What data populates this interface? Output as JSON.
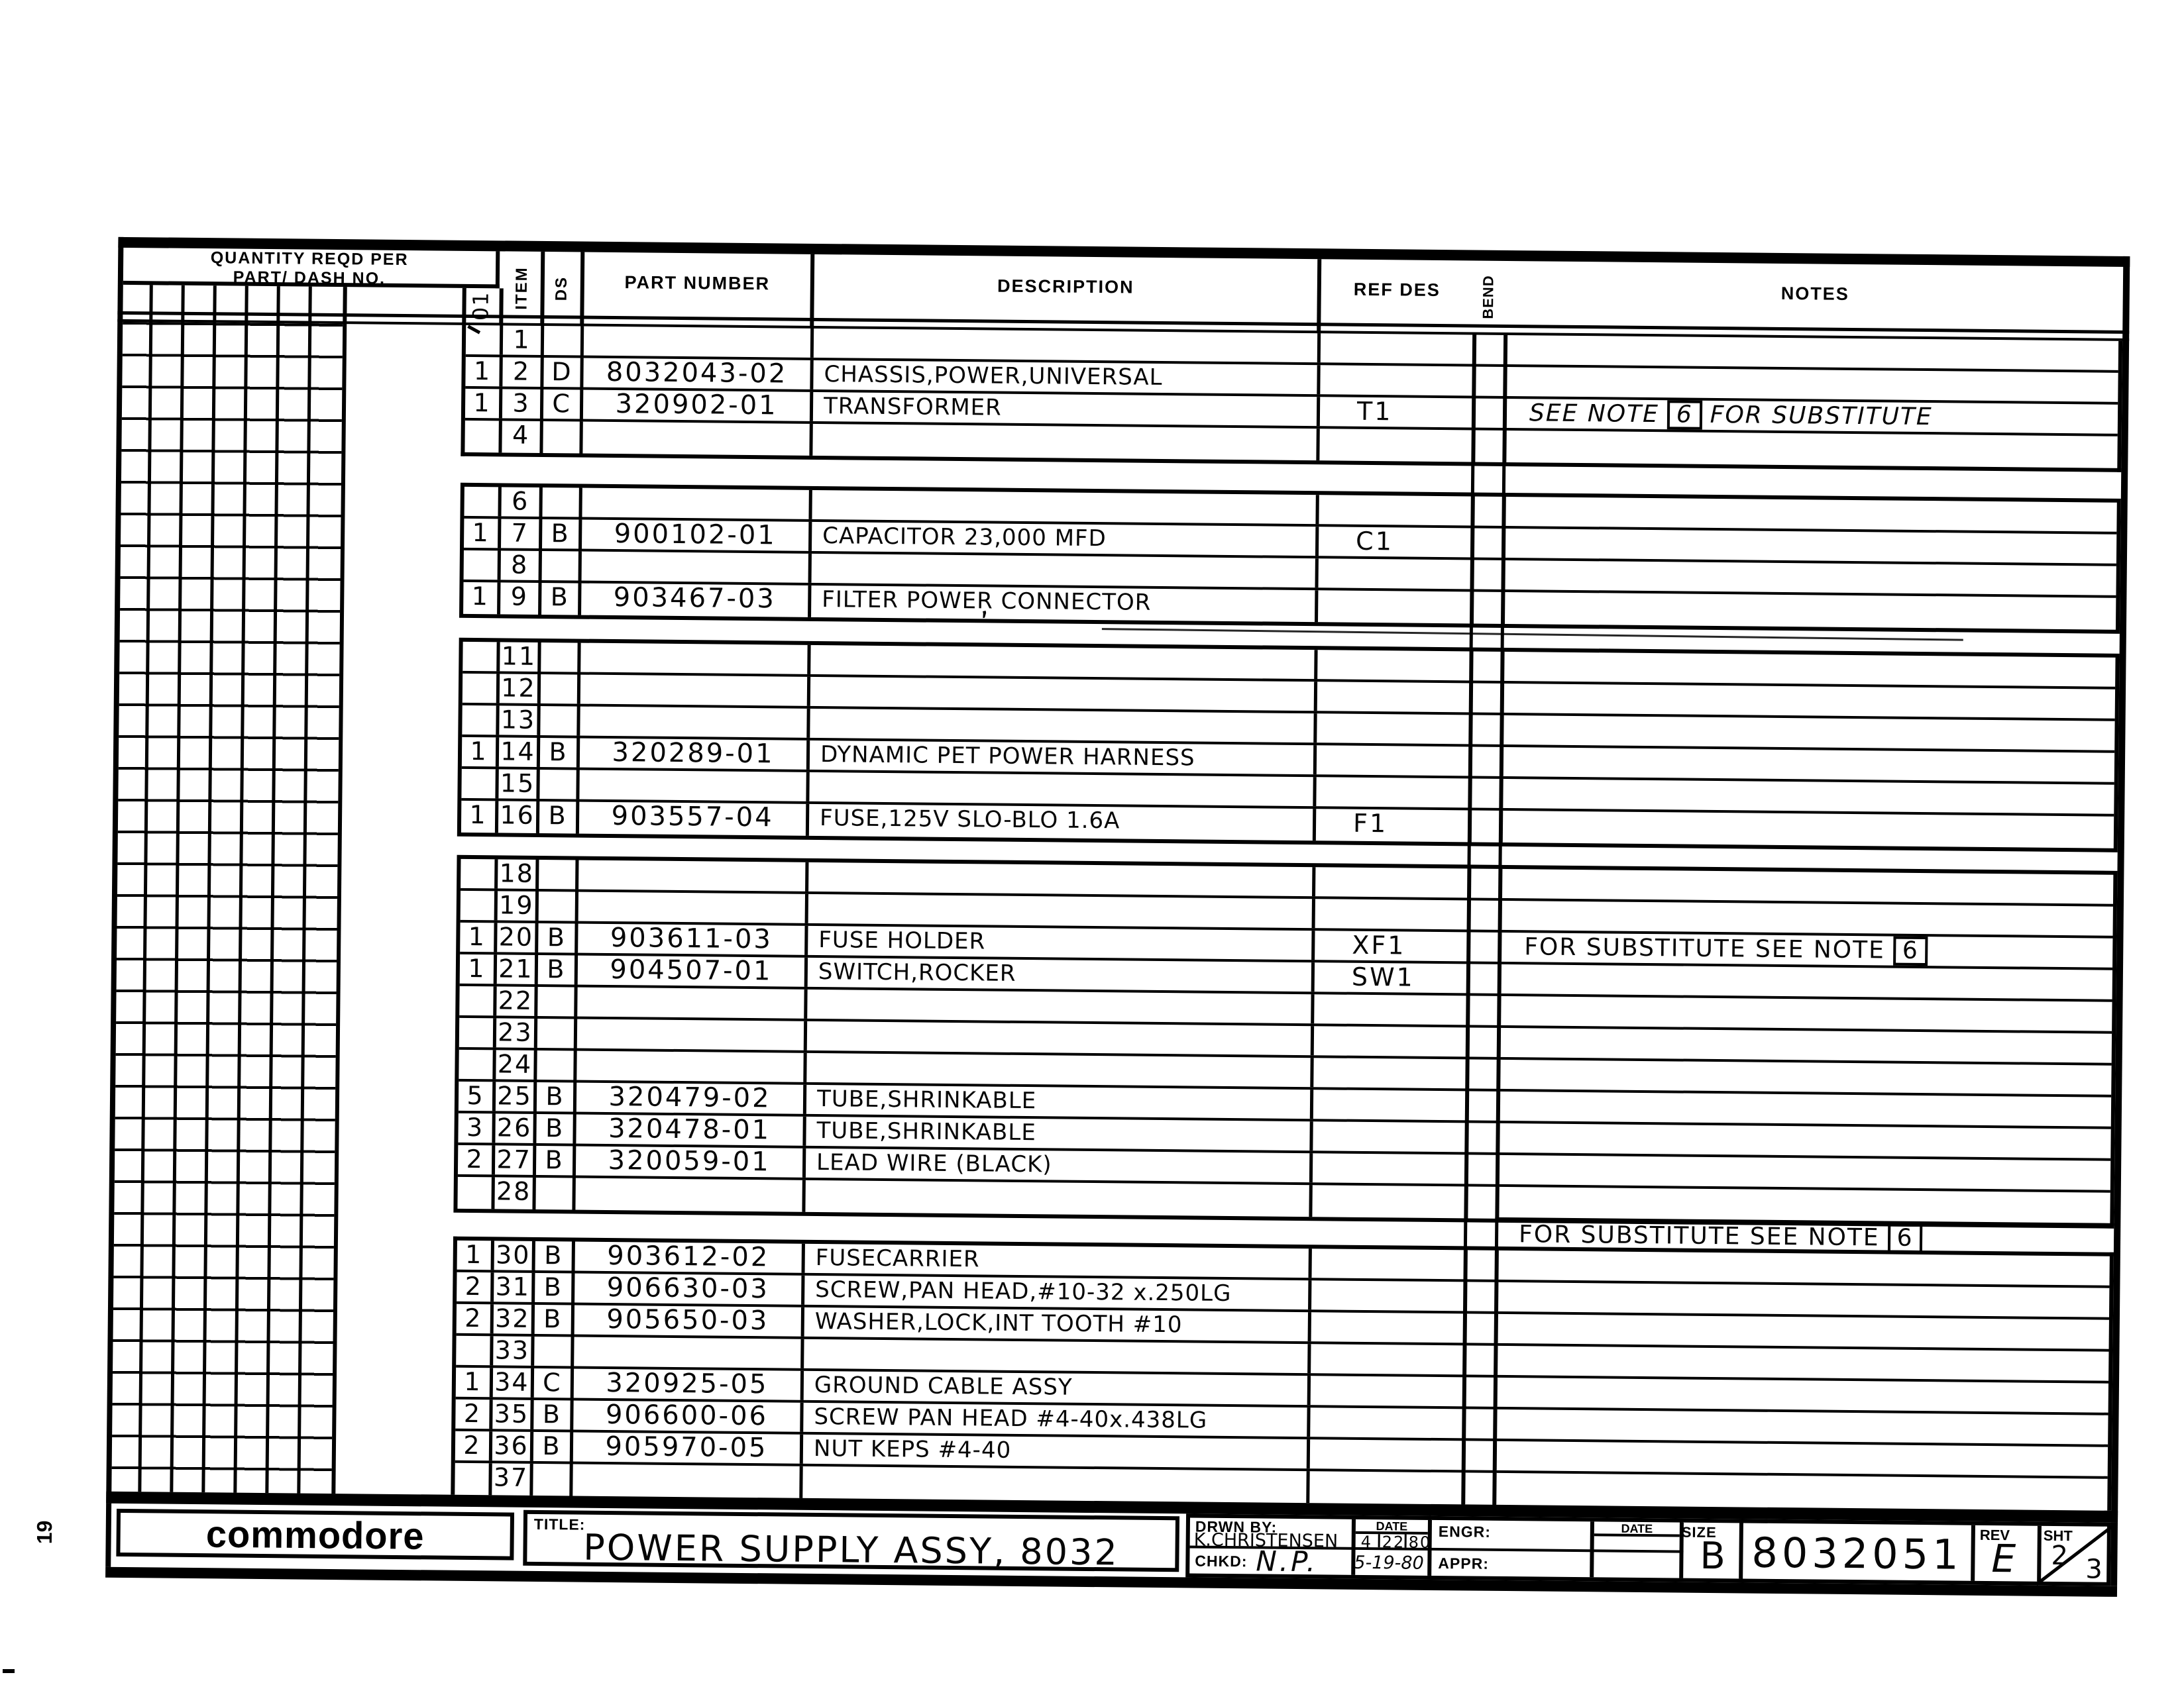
{
  "page": {
    "number": "19"
  },
  "table_header": {
    "quantity_title_line1": "QUANTITY REQD PER",
    "quantity_title_line2": "PART/ DASH NO.",
    "dash_no": "01",
    "item": "ITEM",
    "ds": "DS",
    "part_number": "PART NUMBER",
    "description": "DESCRIPTION",
    "ref_des": "REF DES",
    "bend": "BEND",
    "notes": "NOTES"
  },
  "blocks": [
    {
      "rows": [
        {
          "qty": "",
          "item": "1",
          "ds": "",
          "part": "",
          "desc": "",
          "ref": ""
        },
        {
          "qty": "1",
          "item": "2",
          "ds": "D",
          "part": "8032043-02",
          "desc": "CHASSIS,POWER,UNIVERSAL",
          "ref": ""
        },
        {
          "qty": "1",
          "item": "3",
          "ds": "C",
          "part": "320902-01",
          "desc": "TRANSFORMER",
          "ref": "T1",
          "note": {
            "pre": "SEE NOTE",
            "num": "6",
            "post": "FOR SUBSTITUTE",
            "slant": true
          }
        },
        {
          "qty": "",
          "item": "4",
          "ds": "",
          "part": "",
          "desc": "",
          "ref": ""
        }
      ]
    },
    {
      "rows": [
        {
          "qty": "",
          "item": "6",
          "ds": "",
          "part": "",
          "desc": "",
          "ref": ""
        },
        {
          "qty": "1",
          "item": "7",
          "ds": "B",
          "part": "900102-01",
          "desc": "CAPACITOR 23,000 MFD",
          "ref": "C1"
        },
        {
          "qty": "",
          "item": "8",
          "ds": "",
          "part": "",
          "desc": "",
          "ref": ""
        },
        {
          "qty": "1",
          "item": "9",
          "ds": "B",
          "part": "903467-03",
          "desc": "FILTER POWER CONNECTOR",
          "ref": ""
        }
      ]
    },
    {
      "rows": [
        {
          "qty": "",
          "item": "11",
          "ds": "",
          "part": "",
          "desc": "",
          "ref": ""
        },
        {
          "qty": "",
          "item": "12",
          "ds": "",
          "part": "",
          "desc": "",
          "ref": ""
        },
        {
          "qty": "",
          "item": "13",
          "ds": "",
          "part": "",
          "desc": "",
          "ref": ""
        },
        {
          "qty": "1",
          "item": "14",
          "ds": "B",
          "part": "320289-01",
          "desc": "DYNAMIC PET  POWER HARNESS",
          "ref": ""
        },
        {
          "qty": "",
          "item": "15",
          "ds": "",
          "part": "",
          "desc": "",
          "ref": ""
        },
        {
          "qty": "1",
          "item": "16",
          "ds": "B",
          "part": "903557-04",
          "desc": "FUSE,125V SLO-BLO 1.6A",
          "ref": "F1"
        }
      ]
    },
    {
      "rows": [
        {
          "qty": "",
          "item": "18",
          "ds": "",
          "part": "",
          "desc": "",
          "ref": ""
        },
        {
          "qty": "",
          "item": "19",
          "ds": "",
          "part": "",
          "desc": "",
          "ref": ""
        },
        {
          "qty": "1",
          "item": "20",
          "ds": "B",
          "part": "903611-03",
          "desc": "FUSE HOLDER",
          "ref": "XF1",
          "note": {
            "pre": "FOR SUBSTITUTE  SEE  NOTE",
            "num": "6",
            "post": "",
            "slant": false
          }
        },
        {
          "qty": "1",
          "item": "21",
          "ds": "B",
          "part": "904507-01",
          "desc": "SWITCH,ROCKER",
          "ref": "SW1"
        },
        {
          "qty": "",
          "item": "22",
          "ds": "",
          "part": "",
          "desc": "",
          "ref": ""
        },
        {
          "qty": "",
          "item": "23",
          "ds": "",
          "part": "",
          "desc": "",
          "ref": ""
        },
        {
          "qty": "",
          "item": "24",
          "ds": "",
          "part": "",
          "desc": "",
          "ref": ""
        },
        {
          "qty": "5",
          "item": "25",
          "ds": "B",
          "part": "320479-02",
          "desc": "TUBE,SHRINKABLE",
          "ref": ""
        },
        {
          "qty": "3",
          "item": "26",
          "ds": "B",
          "part": "320478-01",
          "desc": "TUBE,SHRINKABLE",
          "ref": ""
        },
        {
          "qty": "2",
          "item": "27",
          "ds": "B",
          "part": "320059-01",
          "desc": "LEAD WIRE (BLACK)",
          "ref": ""
        },
        {
          "qty": "",
          "item": "28",
          "ds": "",
          "part": "",
          "desc": "",
          "ref": ""
        }
      ]
    },
    {
      "rows": [
        {
          "qty": "1",
          "item": "30",
          "ds": "B",
          "part": "903612-02",
          "desc": "FUSECARRIER",
          "ref": ""
        },
        {
          "qty": "2",
          "item": "31",
          "ds": "B",
          "part": "906630-03",
          "desc": "SCREW,PAN HEAD,#10-32 x.250LG",
          "ref": ""
        },
        {
          "qty": "2",
          "item": "32",
          "ds": "B",
          "part": "905650-03",
          "desc": "WASHER,LOCK,INT TOOTH #10",
          "ref": ""
        },
        {
          "qty": "",
          "item": "33",
          "ds": "",
          "part": "",
          "desc": "",
          "ref": ""
        },
        {
          "qty": "1",
          "item": "34",
          "ds": "C",
          "part": "320925-05",
          "desc": "GROUND CABLE ASSY",
          "ref": ""
        },
        {
          "qty": "2",
          "item": "35",
          "ds": "B",
          "part": "906600-06",
          "desc": "SCREW PAN HEAD #4-40x.438LG",
          "ref": ""
        },
        {
          "qty": "2",
          "item": "36",
          "ds": "B",
          "part": "905970-05",
          "desc": "NUT KEPS #4-40",
          "ref": ""
        },
        {
          "qty": "",
          "item": "37",
          "ds": "",
          "part": "",
          "desc": "",
          "ref": ""
        }
      ]
    }
  ],
  "gap_note": {
    "pre": "FOR  SUBSTITUTE  SEE  NOTE",
    "num": "6",
    "post": ""
  },
  "title_block": {
    "brand": "commodore",
    "title_label": "TITLE:",
    "title": "POWER SUPPLY ASSY, 8032",
    "drwn_label": "DRWN BY:",
    "drwn_name": "K.CHRISTENSEN",
    "date_label": "DATE",
    "drwn_date_m": "4",
    "drwn_date_d": "22",
    "drwn_date_y": "80",
    "chkd_label": "CHKD:",
    "chkd_name": "N.P.",
    "chkd_date": "5-19-80",
    "engr_label": "ENGR:",
    "appr_label": "APPR:",
    "date2_label": "DATE",
    "size_label": "SIZE",
    "size": "B",
    "number": "8032051",
    "rev_label": "REV",
    "rev": "E",
    "sht_label": "SHT",
    "sht_top": "2",
    "sht_bottom": "3"
  }
}
